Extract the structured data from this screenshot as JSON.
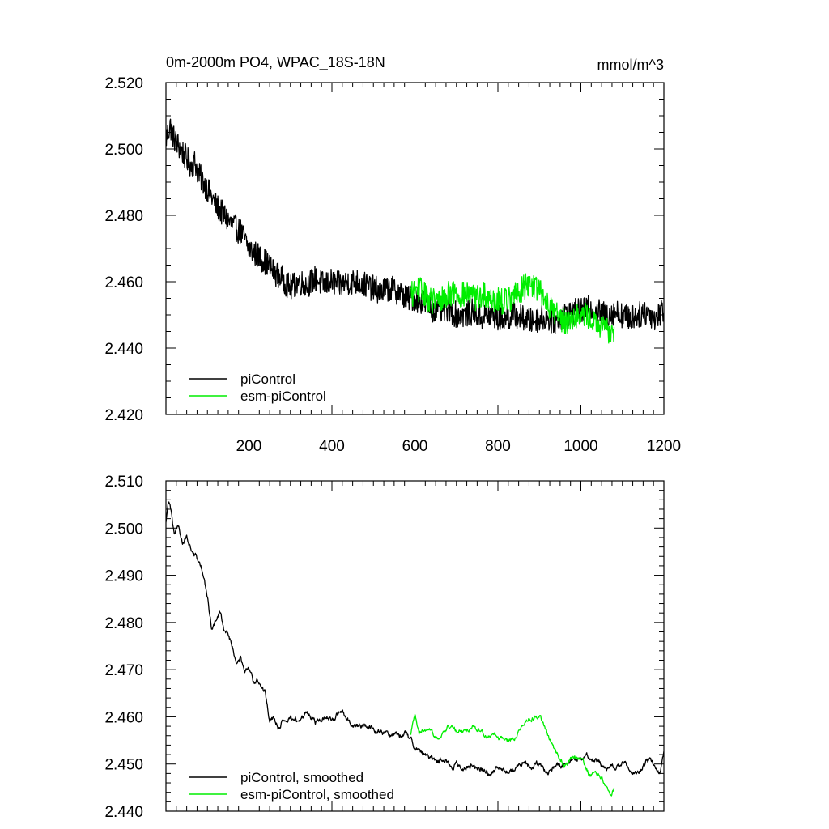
{
  "chart_data": [
    {
      "type": "line",
      "title": "0m-2000m PO4, WPAC_18S-18N",
      "units": "mmol/m^3",
      "xlabel": "",
      "ylabel": "",
      "xlim": [
        0,
        1200
      ],
      "ylim": [
        2.42,
        2.52
      ],
      "xticks": [
        200,
        400,
        600,
        800,
        1000,
        1200
      ],
      "xtick_labels": [
        "200",
        "400",
        "600",
        "800",
        "1000",
        "1200"
      ],
      "yticks": [
        2.42,
        2.44,
        2.46,
        2.48,
        2.5,
        2.52
      ],
      "ytick_labels": [
        "2.420",
        "2.440",
        "2.460",
        "2.480",
        "2.500",
        "2.520"
      ],
      "legend_position": "bottom-left",
      "series": [
        {
          "name": "piControl",
          "color": "#000000",
          "x": [
            0,
            10,
            20,
            30,
            40,
            50,
            60,
            70,
            80,
            90,
            100,
            120,
            140,
            160,
            180,
            200,
            220,
            240,
            260,
            280,
            300,
            320,
            340,
            360,
            380,
            400,
            420,
            440,
            460,
            480,
            500,
            520,
            540,
            560,
            580,
            600,
            620,
            640,
            660,
            680,
            700,
            720,
            740,
            760,
            780,
            800,
            820,
            840,
            860,
            880,
            900,
            920,
            940,
            960,
            980,
            1000,
            1020,
            1040,
            1060,
            1080,
            1100,
            1120,
            1140,
            1160,
            1180,
            1200
          ],
          "values": [
            2.503,
            2.507,
            2.503,
            2.501,
            2.499,
            2.497,
            2.495,
            2.496,
            2.492,
            2.49,
            2.488,
            2.483,
            2.48,
            2.477,
            2.475,
            2.47,
            2.468,
            2.466,
            2.463,
            2.461,
            2.458,
            2.46,
            2.459,
            2.461,
            2.459,
            2.46,
            2.459,
            2.46,
            2.46,
            2.459,
            2.458,
            2.457,
            2.458,
            2.457,
            2.455,
            2.455,
            2.454,
            2.452,
            2.451,
            2.452,
            2.45,
            2.45,
            2.451,
            2.449,
            2.45,
            2.449,
            2.449,
            2.45,
            2.449,
            2.448,
            2.449,
            2.449,
            2.448,
            2.45,
            2.451,
            2.451,
            2.452,
            2.451,
            2.45,
            2.451,
            2.45,
            2.449,
            2.45,
            2.451,
            2.449,
            2.452
          ],
          "noise": 0.004
        },
        {
          "name": "esm-piControl",
          "color": "#00ee00",
          "x": [
            590,
            610,
            630,
            650,
            670,
            690,
            710,
            730,
            750,
            770,
            790,
            810,
            830,
            850,
            870,
            890,
            910,
            930,
            950,
            970,
            990,
            1010,
            1030,
            1050,
            1070,
            1080
          ],
          "values": [
            2.456,
            2.458,
            2.455,
            2.454,
            2.455,
            2.457,
            2.456,
            2.456,
            2.455,
            2.456,
            2.455,
            2.454,
            2.455,
            2.457,
            2.459,
            2.459,
            2.455,
            2.452,
            2.449,
            2.448,
            2.45,
            2.45,
            2.448,
            2.446,
            2.445,
            2.446
          ],
          "noise": 0.004
        }
      ]
    },
    {
      "type": "line",
      "title": "",
      "xlabel": "",
      "ylabel": "",
      "xlim": [
        0,
        1200
      ],
      "ylim": [
        2.44,
        2.51
      ],
      "yticks": [
        2.44,
        2.45,
        2.46,
        2.47,
        2.48,
        2.49,
        2.5,
        2.51
      ],
      "ytick_labels": [
        "2.440",
        "2.450",
        "2.460",
        "2.470",
        "2.480",
        "2.490",
        "2.500",
        "2.510"
      ],
      "legend_position": "bottom-left",
      "series": [
        {
          "name": "piControl, smoothed",
          "color": "#000000",
          "x": [
            0,
            5,
            10,
            20,
            30,
            40,
            50,
            60,
            70,
            80,
            90,
            100,
            110,
            120,
            130,
            140,
            150,
            160,
            170,
            180,
            190,
            200,
            210,
            220,
            230,
            240,
            250,
            260,
            270,
            280,
            290,
            300,
            320,
            340,
            360,
            380,
            400,
            420,
            440,
            460,
            480,
            500,
            520,
            540,
            560,
            580,
            600,
            620,
            640,
            660,
            680,
            700,
            720,
            740,
            760,
            780,
            800,
            820,
            840,
            860,
            880,
            900,
            920,
            940,
            960,
            980,
            1000,
            1020,
            1040,
            1060,
            1080,
            1100,
            1120,
            1140,
            1160,
            1180,
            1190,
            1200
          ],
          "values": [
            2.501,
            2.506,
            2.506,
            2.499,
            2.5,
            2.497,
            2.498,
            2.496,
            2.494,
            2.493,
            2.49,
            2.485,
            2.479,
            2.48,
            2.482,
            2.479,
            2.478,
            2.475,
            2.471,
            2.472,
            2.469,
            2.47,
            2.467,
            2.468,
            2.467,
            2.465,
            2.46,
            2.46,
            2.458,
            2.459,
            2.458,
            2.46,
            2.459,
            2.461,
            2.459,
            2.46,
            2.46,
            2.461,
            2.459,
            2.458,
            2.458,
            2.458,
            2.457,
            2.456,
            2.457,
            2.456,
            2.454,
            2.452,
            2.451,
            2.451,
            2.45,
            2.45,
            2.449,
            2.45,
            2.449,
            2.448,
            2.449,
            2.449,
            2.448,
            2.45,
            2.449,
            2.45,
            2.448,
            2.449,
            2.45,
            2.451,
            2.451,
            2.452,
            2.451,
            2.449,
            2.449,
            2.45,
            2.449,
            2.448,
            2.451,
            2.449,
            2.448,
            2.453
          ],
          "noise": 0.0012
        },
        {
          "name": "esm-piControl, smoothed",
          "color": "#00ee00",
          "x": [
            590,
            600,
            610,
            620,
            640,
            660,
            680,
            700,
            720,
            740,
            760,
            780,
            800,
            820,
            840,
            860,
            880,
            900,
            920,
            940,
            960,
            980,
            1000,
            1020,
            1040,
            1060,
            1070,
            1080
          ],
          "values": [
            2.456,
            2.46,
            2.456,
            2.457,
            2.456,
            2.456,
            2.458,
            2.457,
            2.457,
            2.458,
            2.457,
            2.456,
            2.456,
            2.455,
            2.456,
            2.458,
            2.46,
            2.46,
            2.456,
            2.452,
            2.45,
            2.451,
            2.451,
            2.448,
            2.448,
            2.446,
            2.444,
            2.445
          ],
          "noise": 0.001
        }
      ]
    }
  ]
}
